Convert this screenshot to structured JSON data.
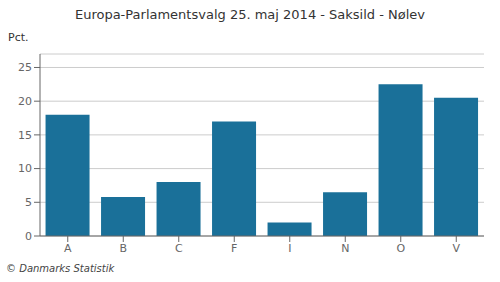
{
  "chart_data": {
    "type": "bar",
    "title": "Europa-Parlamentsvalg 25. maj 2014 - Saksild - Nølev",
    "ylabel": "Pct.",
    "footer": "© Danmarks Statistik",
    "categories": [
      "A",
      "B",
      "C",
      "F",
      "I",
      "N",
      "O",
      "V"
    ],
    "values": [
      18.0,
      5.8,
      8.0,
      17.0,
      2.0,
      6.5,
      22.5,
      20.5
    ],
    "color": "#1a7099",
    "ylim": [
      0,
      27
    ],
    "yticks": [
      0,
      5,
      10,
      15,
      20,
      25
    ],
    "grid": true
  }
}
